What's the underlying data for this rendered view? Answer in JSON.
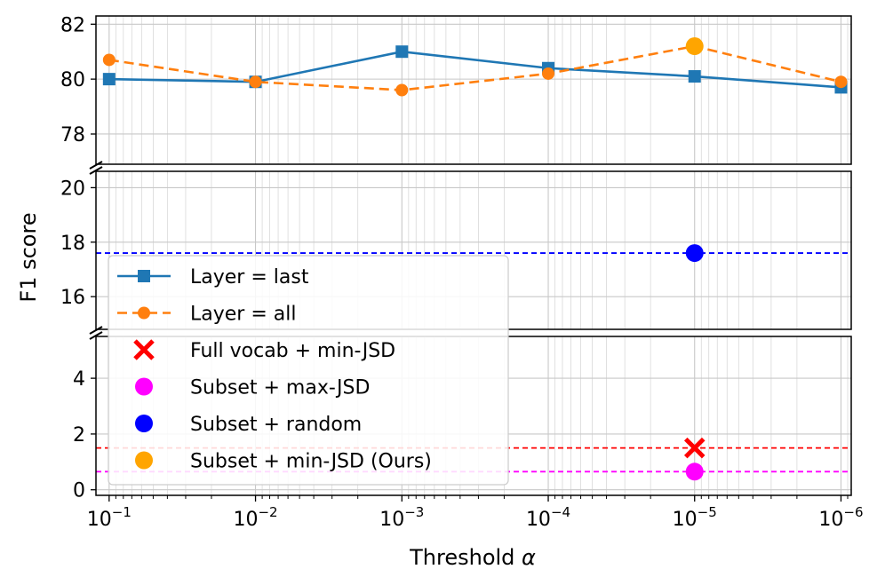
{
  "chart_data": {
    "type": "line",
    "title": "",
    "xlabel": "Threshold",
    "xlabel_symbol": "α",
    "ylabel": "F1 score",
    "x_scale": "log-reversed",
    "x_exponents": [
      -1,
      -2,
      -3,
      -4,
      -5,
      -6
    ],
    "x_tick_base": "10",
    "x_tick_labels": [
      "−1",
      "−2",
      "−3",
      "−4",
      "−5",
      "−6"
    ],
    "y_ranges": [
      {
        "name": "bottom",
        "ylim": [
          -0.2,
          5.5
        ],
        "ticks": [
          0,
          2,
          4
        ],
        "tick_labels": [
          "0",
          "2",
          "4"
        ]
      },
      {
        "name": "middle",
        "ylim": [
          14.8,
          20.6
        ],
        "ticks": [
          16,
          18,
          20
        ],
        "tick_labels": [
          "16",
          "18",
          "20"
        ]
      },
      {
        "name": "top",
        "ylim": [
          76.9,
          82.3
        ],
        "ticks": [
          78,
          80,
          82
        ],
        "tick_labels": [
          "78",
          "80",
          "82"
        ]
      }
    ],
    "grid": true,
    "legend_position": "lower-left",
    "series": [
      {
        "name": "Layer = last",
        "kind": "line",
        "style": "solid",
        "marker": "square",
        "color": "#1f77b4",
        "values": [
          80.0,
          79.9,
          81.0,
          80.4,
          80.1,
          79.7
        ]
      },
      {
        "name": "Layer = all",
        "kind": "line",
        "style": "dashed",
        "marker": "circle",
        "color": "#ff7f0e",
        "values": [
          80.7,
          79.9,
          79.6,
          80.2,
          81.2,
          79.9
        ]
      },
      {
        "name": "Full vocab + min-JSD",
        "kind": "point",
        "marker": "x",
        "color": "#ff0000",
        "x_exp": -5,
        "y": 1.5,
        "hline": true
      },
      {
        "name": "Subset + max-JSD",
        "kind": "point",
        "marker": "circle",
        "color": "#ff00ff",
        "x_exp": -5,
        "y": 0.65,
        "hline": true
      },
      {
        "name": "Subset + random",
        "kind": "point",
        "marker": "circle",
        "color": "#0000ff",
        "x_exp": -5,
        "y": 17.6,
        "hline": true
      },
      {
        "name": "Subset + min-JSD (Ours)",
        "kind": "point",
        "marker": "circle",
        "color": "#ffa500",
        "x_exp": -5,
        "y": 81.2,
        "hline": false
      }
    ]
  }
}
